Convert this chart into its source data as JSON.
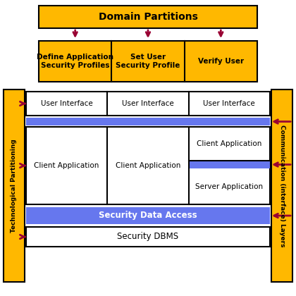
{
  "bg_color": "#ffffff",
  "gold": "#FFB800",
  "blue": "#6677EE",
  "white": "#FFFFFF",
  "black": "#000000",
  "arrow_color": "#990033",
  "border_color": "#000000",
  "title": "Domain Partitions",
  "tech_label": "Technological Partitioning",
  "comm_label": "Communication (interface) Layers",
  "sub_boxes": [
    "Define Application\nSecurity Profiles",
    "Set User\nSecurity Profile",
    "Verify User"
  ],
  "ui_labels": [
    "User Interface",
    "User Interface",
    "User Interface"
  ],
  "client_labels": [
    "Client Application",
    "Client Application",
    "Client Application"
  ],
  "server_label": "Server Application",
  "sda_label": "Security Data Access",
  "dbms_label": "Security DBMS",
  "fig_w": 4.2,
  "fig_h": 4.2,
  "dpi": 100
}
